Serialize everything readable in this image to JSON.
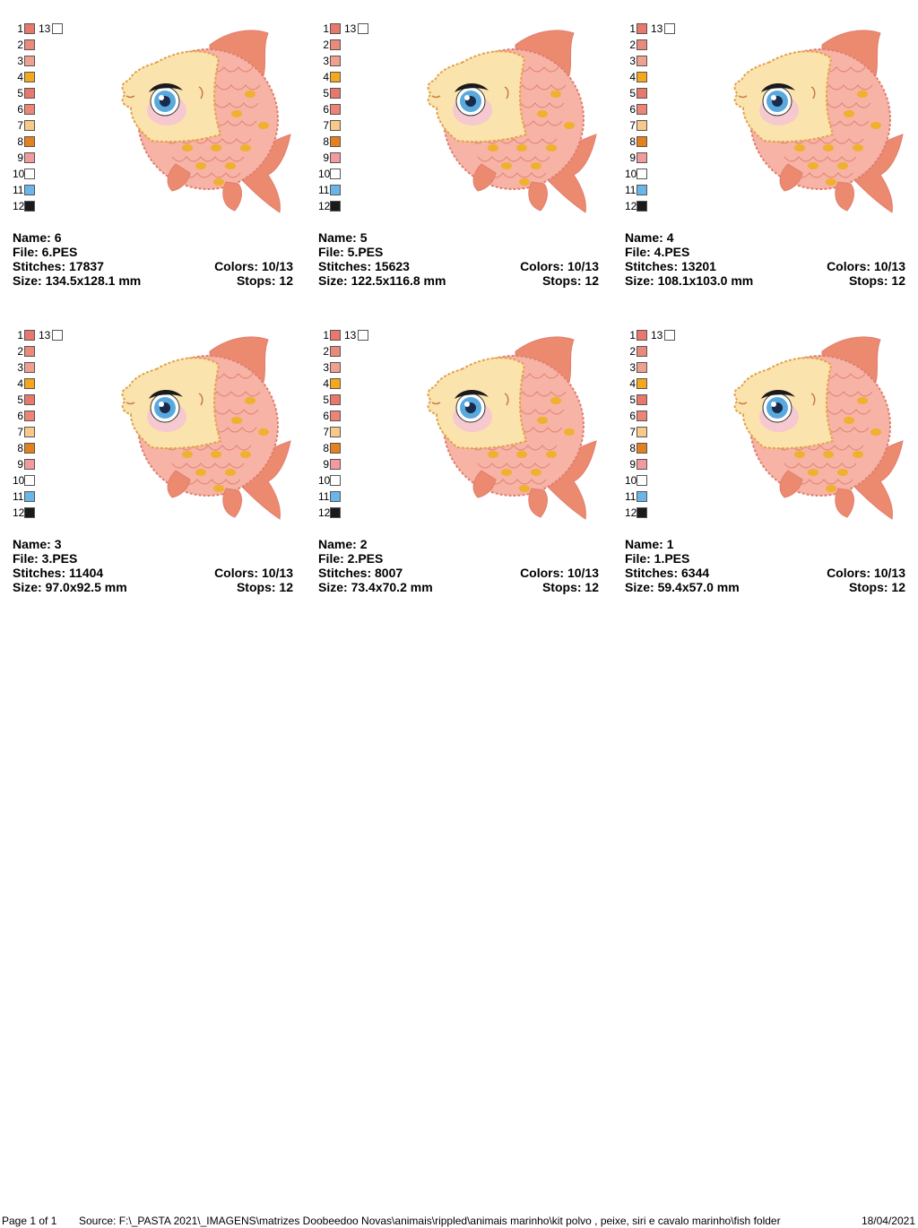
{
  "colors": {
    "c1": "#e8786e",
    "c2": "#e98a7c",
    "c3": "#f0a090",
    "c4": "#f4a81c",
    "c5": "#e8786e",
    "c6": "#ec8575",
    "c7": "#f7c98a",
    "c8": "#e4801e",
    "c9": "#f19aa0",
    "c10": "#ffffff",
    "c11": "#6ab6e8",
    "c12": "#1a1a1a",
    "c13": "#ffffff",
    "body_cream": "#fbe3ae",
    "body_outline": "#e3a24a",
    "scale_pink": "#f6b3a6",
    "scale_line": "#e07e6e",
    "scale_gold": "#efb12e",
    "fin": "#ec8a70",
    "cheek": "#f6c8cf",
    "iris": "#5aa9dd"
  },
  "labels": {
    "name": "Name: ",
    "file": "File: ",
    "stitches": "Stitches: ",
    "colors": "Colors: ",
    "size": "Size: ",
    "stops": "Stops: "
  },
  "palette_numbers": [
    "1",
    "2",
    "3",
    "4",
    "5",
    "6",
    "7",
    "8",
    "9",
    "10",
    "11",
    "12",
    "13"
  ],
  "designs": [
    {
      "name": "6",
      "file": "6.PES",
      "stitches": "17837",
      "colors": "10/13",
      "size": "134.5x128.1 mm",
      "stops": "12"
    },
    {
      "name": "5",
      "file": "5.PES",
      "stitches": "15623",
      "colors": "10/13",
      "size": "122.5x116.8 mm",
      "stops": "12"
    },
    {
      "name": "4",
      "file": "4.PES",
      "stitches": "13201",
      "colors": "10/13",
      "size": "108.1x103.0 mm",
      "stops": "12"
    },
    {
      "name": "3",
      "file": "3.PES",
      "stitches": "11404",
      "colors": "10/13",
      "size": "97.0x92.5 mm",
      "stops": "12"
    },
    {
      "name": "2",
      "file": "2.PES",
      "stitches": "8007",
      "colors": "10/13",
      "size": "73.4x70.2 mm",
      "stops": "12"
    },
    {
      "name": "1",
      "file": "1.PES",
      "stitches": "6344",
      "colors": "10/13",
      "size": "59.4x57.0 mm",
      "stops": "12"
    }
  ],
  "footer": {
    "page": "Page 1 of 1",
    "source": "Source: F:\\_PASTA 2021\\_IMAGENS\\matrizes Doobeedoo Novas\\animais\\rippled\\animais marinho\\kit polvo , peixe, siri e cavalo marinho\\fish folder",
    "date": "18/04/2021"
  }
}
